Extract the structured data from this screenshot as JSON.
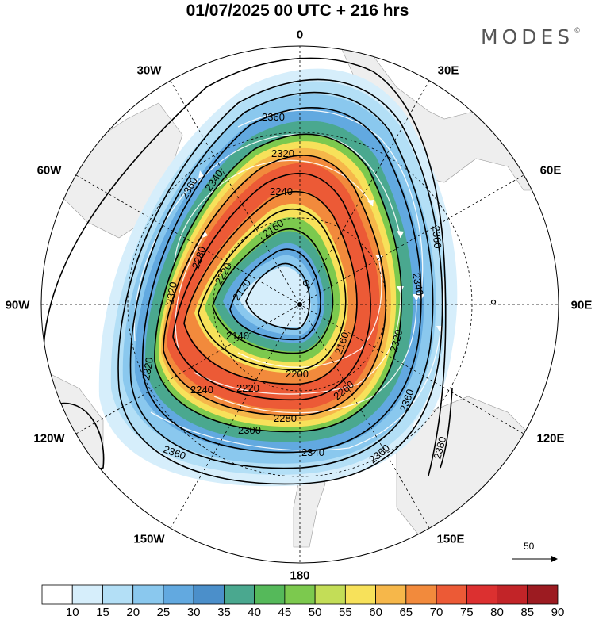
{
  "header": {
    "title": "01/07/2025  00 UTC  + 216 hrs",
    "brand": "MODES",
    "brand_mark": "©"
  },
  "longitude_labels": {
    "lon_0": "0",
    "lon_30e": "30E",
    "lon_60e": "60E",
    "lon_90e": "90E",
    "lon_120e": "120E",
    "lon_150e": "150E",
    "lon_180": "180",
    "lon_150w": "150W",
    "lon_120w": "120W",
    "lon_90w": "90W",
    "lon_60w": "60W",
    "lon_30w": "30W"
  },
  "contour_labels": [
    "2360",
    "2320",
    "2280",
    "2240",
    "2200",
    "2160",
    "2120",
    "2140",
    "2160",
    "2200",
    "2220",
    "2240",
    "2260",
    "2280",
    "2300",
    "2320",
    "2340",
    "2360",
    "2360",
    "2340",
    "2320",
    "2300",
    "2280",
    "2260",
    "2240",
    "2220",
    "2200",
    "2340",
    "2360",
    "2360",
    "2380",
    "2360"
  ],
  "contour_values": {
    "c2120": "2120",
    "c2140": "2140",
    "c2160": "2160",
    "c2200": "2200",
    "c2220": "2220",
    "c2240": "2240",
    "c2260": "2260",
    "c2280": "2280",
    "c2300": "2300",
    "c2320": "2320",
    "c2340": "2340",
    "c2360": "2360",
    "c2380": "2380"
  },
  "vector_reference": "50",
  "colorbar": {
    "ticks": [
      "10",
      "15",
      "20",
      "25",
      "30",
      "35",
      "40",
      "45",
      "50",
      "55",
      "60",
      "65",
      "70",
      "75",
      "80",
      "85",
      "90"
    ],
    "colors": [
      "#ffffff",
      "#d6eefb",
      "#b3dff6",
      "#8ac8ee",
      "#62a9e0",
      "#4b8fca",
      "#4aa88f",
      "#55b95a",
      "#7cc94e",
      "#c3dd57",
      "#f7e15a",
      "#f6b74a",
      "#f28a3c",
      "#ec5a36",
      "#dc3030",
      "#c22428",
      "#9c1b21"
    ]
  }
}
